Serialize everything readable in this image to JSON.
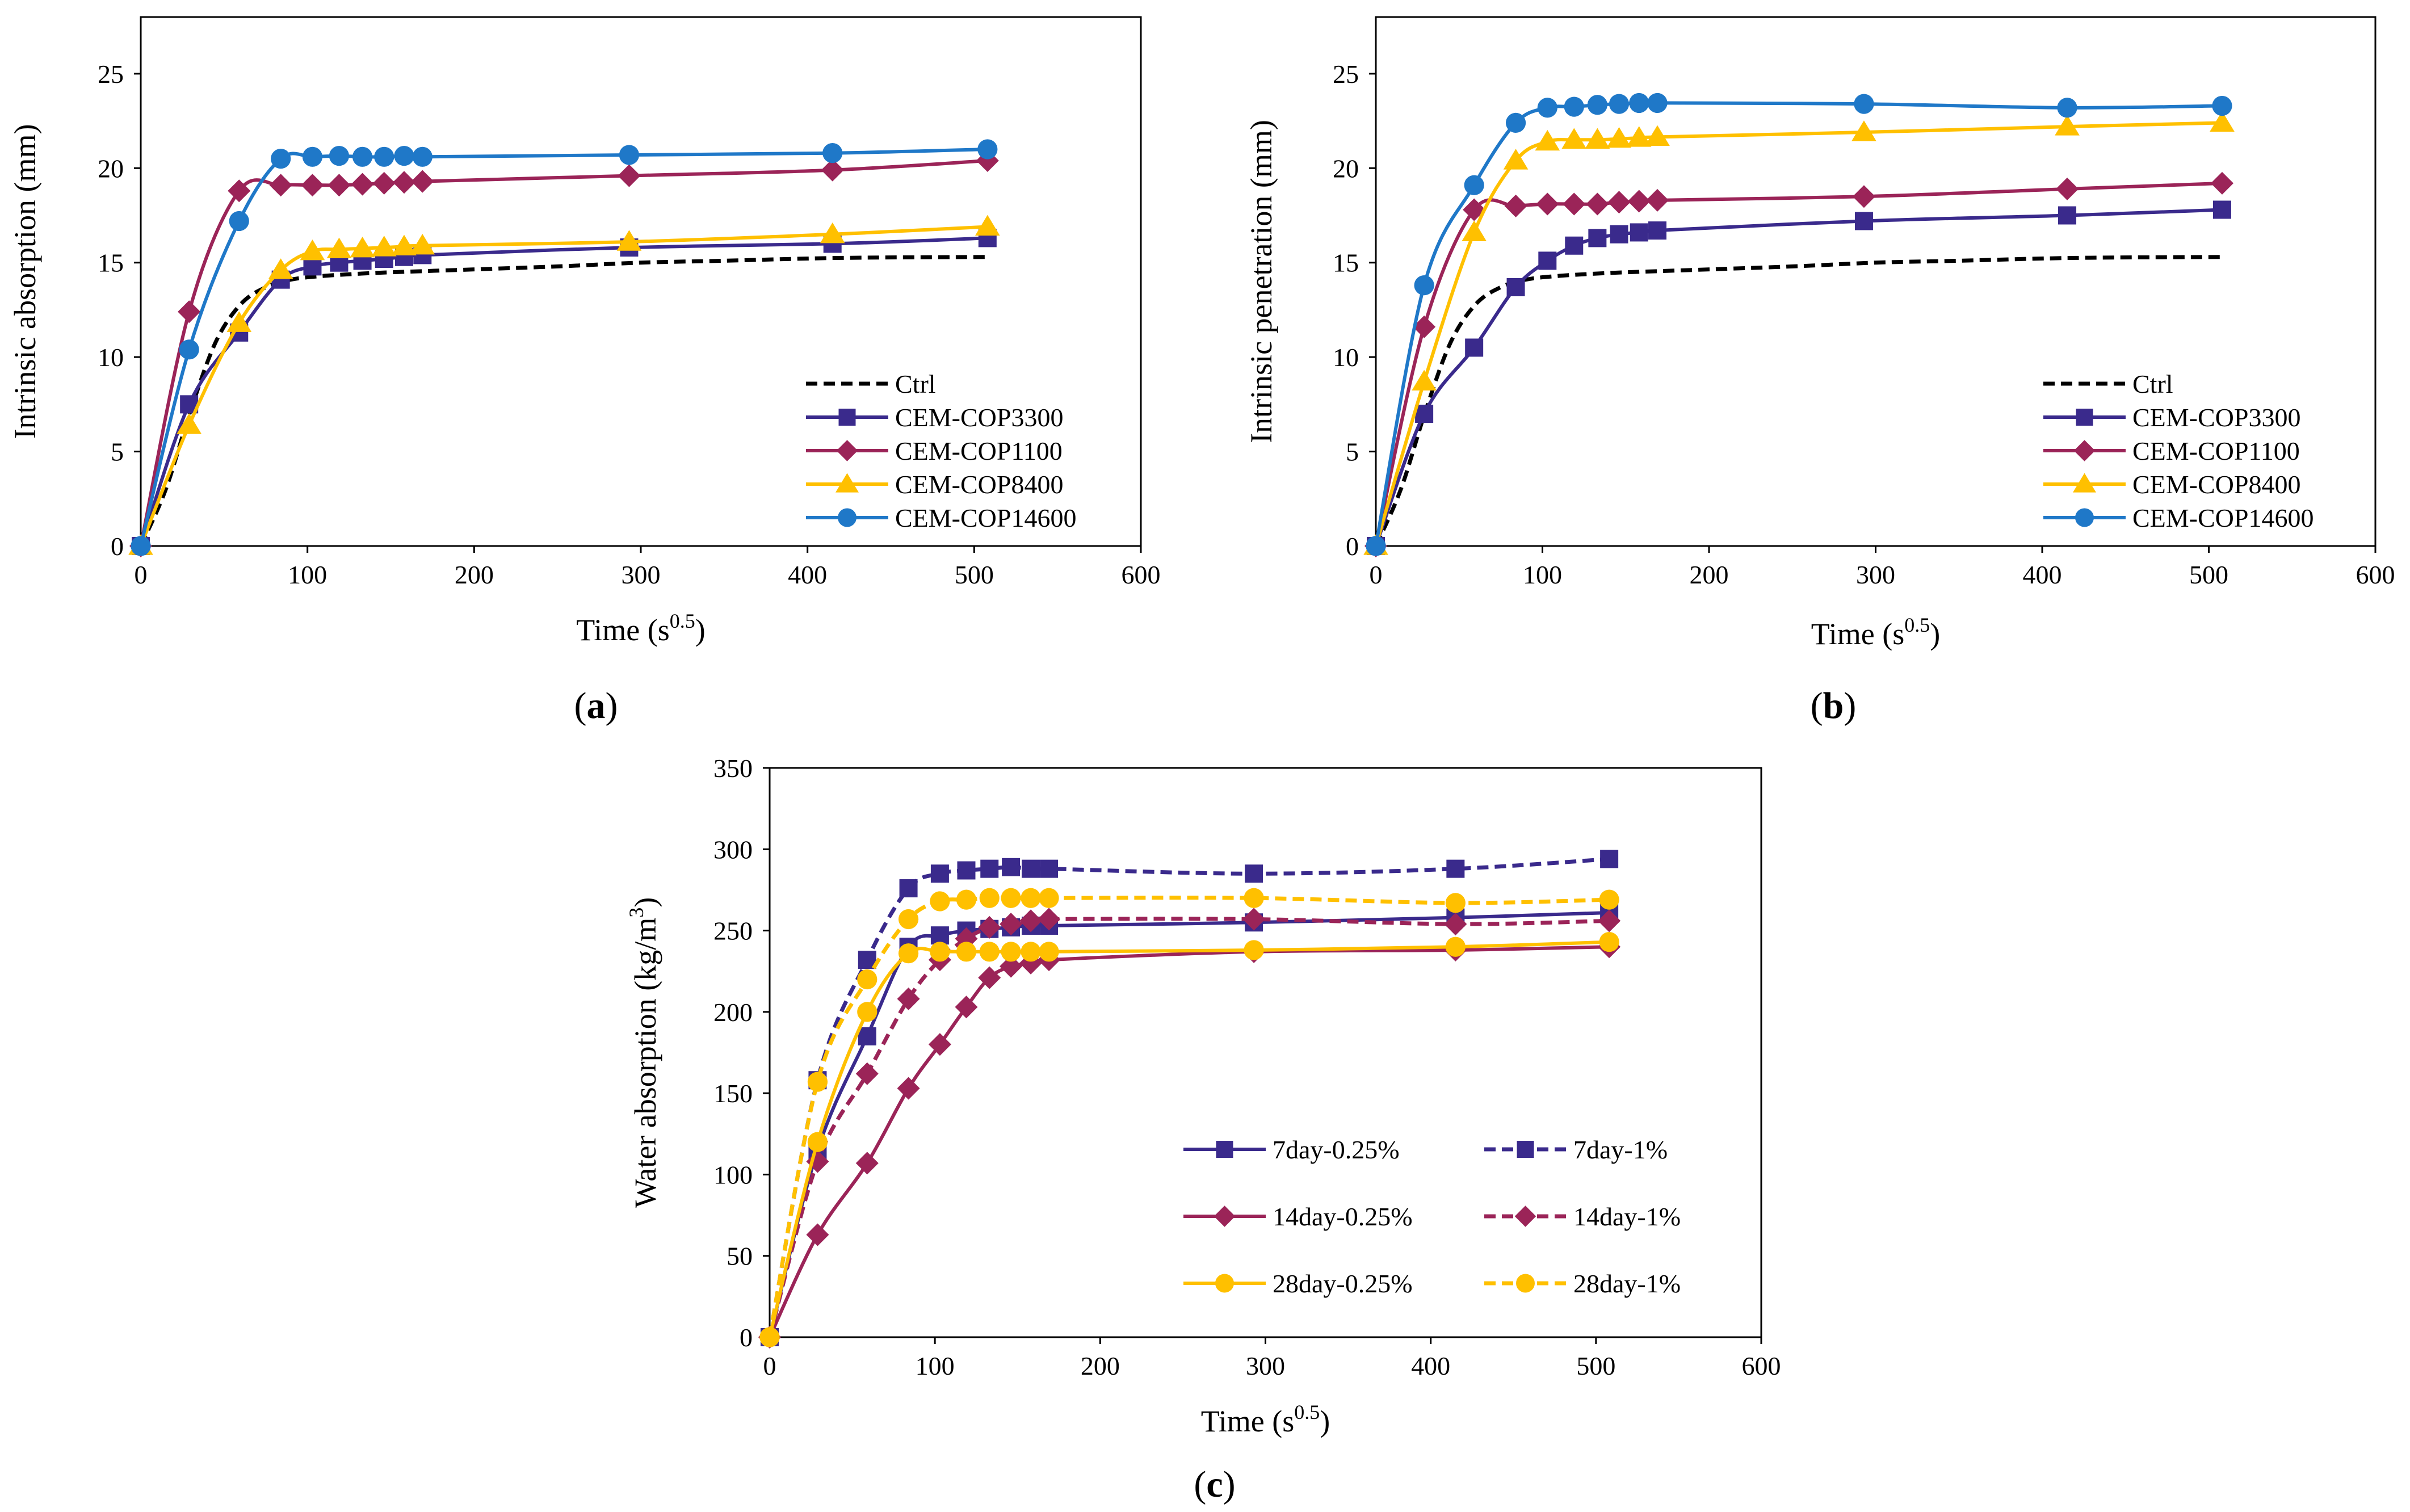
{
  "chart_data": [
    {
      "type": "line",
      "panel": "a",
      "panel_label": "(a)",
      "xlabel": "Time (s",
      "xlabel_sup": "0.5",
      "xlabel_tail": ")",
      "ylabel": "Intrinsic absorption (mm)",
      "xlim": [
        0,
        600
      ],
      "ylim": [
        0,
        28
      ],
      "xticks": [
        0,
        100,
        200,
        300,
        400,
        500,
        600
      ],
      "yticks": [
        0,
        5,
        10,
        15,
        20,
        25
      ],
      "legend_position": "bottom-right",
      "series": [
        {
          "name": "Ctrl",
          "color": "#000000",
          "dash": true,
          "marker": "none",
          "x": [
            0,
            15,
            30,
            45,
            60,
            75,
            90,
            110,
            140,
            170,
            250,
            300,
            350,
            420,
            510
          ],
          "y": [
            0,
            3,
            7.2,
            10.8,
            12.8,
            13.7,
            14.1,
            14.3,
            14.45,
            14.55,
            14.8,
            15.0,
            15.1,
            15.25,
            15.3
          ]
        },
        {
          "name": "CEM-COP3300",
          "color": "#3A2A8C",
          "dash": false,
          "marker": "square",
          "x": [
            0,
            29,
            59,
            84,
            103,
            119,
            133,
            146,
            158,
            169,
            293,
            415,
            508
          ],
          "y": [
            0,
            7.5,
            11.3,
            14.1,
            14.8,
            15.0,
            15.1,
            15.2,
            15.3,
            15.4,
            15.8,
            16.0,
            16.3
          ]
        },
        {
          "name": "CEM-COP1100",
          "color": "#9B2458",
          "dash": false,
          "marker": "diamond",
          "x": [
            0,
            29,
            59,
            84,
            103,
            119,
            133,
            146,
            158,
            169,
            293,
            415,
            508
          ],
          "y": [
            0,
            12.4,
            18.8,
            19.1,
            19.1,
            19.1,
            19.15,
            19.2,
            19.25,
            19.3,
            19.6,
            19.9,
            20.4
          ]
        },
        {
          "name": "CEM-COP8400",
          "color": "#FFC000",
          "dash": false,
          "marker": "triangle",
          "x": [
            0,
            29,
            59,
            84,
            103,
            119,
            133,
            146,
            158,
            169,
            293,
            415,
            508
          ],
          "y": [
            0,
            6.4,
            11.8,
            14.6,
            15.6,
            15.7,
            15.75,
            15.8,
            15.85,
            15.9,
            16.1,
            16.5,
            16.9
          ]
        },
        {
          "name": "CEM-COP14600",
          "color": "#1F78C8",
          "dash": false,
          "marker": "circle",
          "x": [
            0,
            29,
            59,
            84,
            103,
            119,
            133,
            146,
            158,
            169,
            293,
            415,
            508
          ],
          "y": [
            0,
            10.4,
            17.2,
            20.5,
            20.6,
            20.65,
            20.6,
            20.6,
            20.65,
            20.6,
            20.7,
            20.8,
            21.0
          ]
        }
      ]
    },
    {
      "type": "line",
      "panel": "b",
      "panel_label": "(b)",
      "xlabel": "Time (s",
      "xlabel_sup": "0.5",
      "xlabel_tail": ")",
      "ylabel": "Intrinsic penetration (mm)",
      "xlim": [
        0,
        600
      ],
      "ylim": [
        0,
        28
      ],
      "xticks": [
        0,
        100,
        200,
        300,
        400,
        500,
        600
      ],
      "yticks": [
        0,
        5,
        10,
        15,
        20,
        25
      ],
      "legend_position": "bottom-right",
      "series": [
        {
          "name": "Ctrl",
          "color": "#000000",
          "dash": true,
          "marker": "none",
          "x": [
            0,
            15,
            30,
            45,
            60,
            75,
            90,
            110,
            140,
            170,
            250,
            300,
            350,
            420,
            510
          ],
          "y": [
            0,
            3,
            7.2,
            10.8,
            12.8,
            13.7,
            14.1,
            14.3,
            14.45,
            14.55,
            14.8,
            15.0,
            15.1,
            15.25,
            15.3
          ]
        },
        {
          "name": "CEM-COP3300",
          "color": "#3A2A8C",
          "dash": false,
          "marker": "square",
          "x": [
            0,
            29,
            59,
            84,
            103,
            119,
            133,
            146,
            158,
            169,
            293,
            415,
            508
          ],
          "y": [
            0,
            7.0,
            10.5,
            13.7,
            15.1,
            15.9,
            16.3,
            16.5,
            16.6,
            16.7,
            17.2,
            17.5,
            17.8
          ]
        },
        {
          "name": "CEM-COP1100",
          "color": "#9B2458",
          "dash": false,
          "marker": "diamond",
          "x": [
            0,
            29,
            59,
            84,
            103,
            119,
            133,
            146,
            158,
            169,
            293,
            415,
            508
          ],
          "y": [
            0,
            11.6,
            17.8,
            18.0,
            18.1,
            18.1,
            18.1,
            18.2,
            18.25,
            18.3,
            18.5,
            18.9,
            19.2
          ]
        },
        {
          "name": "CEM-COP8400",
          "color": "#FFC000",
          "dash": false,
          "marker": "triangle",
          "x": [
            0,
            29,
            59,
            84,
            103,
            119,
            133,
            146,
            158,
            169,
            293,
            415,
            508
          ],
          "y": [
            0,
            8.7,
            16.6,
            20.4,
            21.4,
            21.5,
            21.5,
            21.55,
            21.6,
            21.65,
            21.9,
            22.2,
            22.4
          ]
        },
        {
          "name": "CEM-COP14600",
          "color": "#1F78C8",
          "dash": false,
          "marker": "circle",
          "x": [
            0,
            29,
            59,
            84,
            103,
            119,
            133,
            146,
            158,
            169,
            293,
            415,
            508
          ],
          "y": [
            0,
            13.8,
            19.1,
            22.4,
            23.2,
            23.25,
            23.35,
            23.4,
            23.45,
            23.45,
            23.4,
            23.2,
            23.3
          ]
        }
      ]
    },
    {
      "type": "line",
      "panel": "c",
      "panel_label": "(c)",
      "xlabel": "Time (s",
      "xlabel_sup": "0.5",
      "xlabel_tail": ")",
      "ylabel": "Water absorption (kg/m",
      "ylabel_sup": "3",
      "ylabel_tail": ")",
      "xlim": [
        0,
        600
      ],
      "ylim": [
        0,
        350
      ],
      "xticks": [
        0,
        100,
        200,
        300,
        400,
        500,
        600
      ],
      "yticks": [
        0,
        50,
        100,
        150,
        200,
        250,
        300,
        350
      ],
      "legend_position": "bottom-right, two columns",
      "series": [
        {
          "name": "7day-0.25%",
          "color": "#3A2A8C",
          "dash": false,
          "marker": "square",
          "x": [
            0,
            29,
            59,
            84,
            103,
            119,
            133,
            146,
            158,
            169,
            293,
            415,
            508
          ],
          "y": [
            0,
            115,
            185,
            240,
            247,
            250,
            251,
            252,
            253,
            253,
            255,
            258,
            261
          ]
        },
        {
          "name": "7day-1%",
          "color": "#3A2A8C",
          "dash": true,
          "marker": "square",
          "x": [
            0,
            29,
            59,
            84,
            103,
            119,
            133,
            146,
            158,
            169,
            293,
            415,
            508
          ],
          "y": [
            0,
            158,
            232,
            276,
            285,
            287,
            288,
            289,
            288,
            288,
            285,
            288,
            294
          ]
        },
        {
          "name": "14day-0.25%",
          "color": "#9B2458",
          "dash": false,
          "marker": "diamond",
          "x": [
            0,
            29,
            59,
            84,
            103,
            119,
            133,
            146,
            158,
            169,
            293,
            415,
            508
          ],
          "y": [
            0,
            63,
            107,
            153,
            180,
            203,
            221,
            228,
            230,
            232,
            237,
            238,
            240
          ]
        },
        {
          "name": "14day-1%",
          "color": "#9B2458",
          "dash": true,
          "marker": "diamond",
          "x": [
            0,
            29,
            59,
            84,
            103,
            119,
            133,
            146,
            158,
            169,
            293,
            415,
            508
          ],
          "y": [
            0,
            108,
            162,
            208,
            232,
            245,
            252,
            254,
            256,
            257,
            257,
            254,
            256
          ]
        },
        {
          "name": "28day-0.25%",
          "color": "#FFC000",
          "dash": false,
          "marker": "circle",
          "x": [
            0,
            29,
            59,
            84,
            103,
            119,
            133,
            146,
            158,
            169,
            293,
            415,
            508
          ],
          "y": [
            0,
            120,
            200,
            236,
            237,
            237,
            237,
            237,
            237,
            237,
            238,
            240,
            243
          ]
        },
        {
          "name": "28day-1%",
          "color": "#FFC000",
          "dash": true,
          "marker": "circle",
          "x": [
            0,
            29,
            59,
            84,
            103,
            119,
            133,
            146,
            158,
            169,
            293,
            415,
            508
          ],
          "y": [
            0,
            157,
            220,
            257,
            268,
            269,
            270,
            270,
            270,
            270,
            270,
            267,
            269
          ]
        }
      ]
    }
  ]
}
